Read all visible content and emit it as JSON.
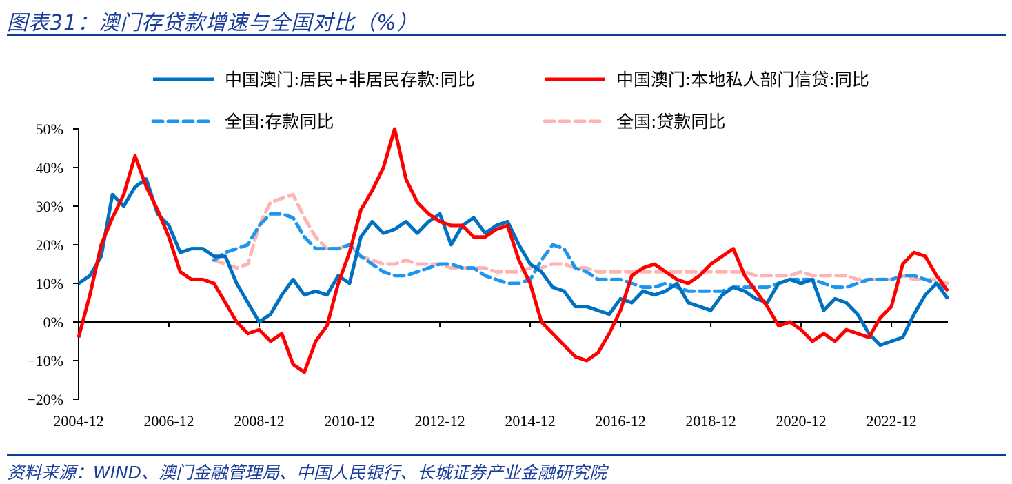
{
  "title": "图表31：澳门存贷款增速与全国对比（%）",
  "source": "资料来源：WIND、澳门金融管理局、中国人民银行、长城证券产业金融研究院",
  "chart_data": {
    "type": "line",
    "title": "",
    "xlabel": "",
    "ylabel": "",
    "ylim": [
      -20,
      50
    ],
    "yticks": [
      -20,
      -10,
      0,
      10,
      20,
      30,
      40,
      50
    ],
    "ytick_labels": [
      "−20%",
      "−10%",
      "0%",
      "10%",
      "20%",
      "30%",
      "40%",
      "50%"
    ],
    "xtick_labels": [
      "2004-12",
      "2006-12",
      "2008-12",
      "2010-12",
      "2012-12",
      "2014-12",
      "2016-12",
      "2018-12",
      "2020-12",
      "2022-12"
    ],
    "xlim": [
      "2004-12",
      "2024-03"
    ],
    "grid": false,
    "legend_placement": "top",
    "x": [
      "2004-12",
      "2005-03",
      "2005-06",
      "2005-09",
      "2005-12",
      "2006-03",
      "2006-06",
      "2006-09",
      "2006-12",
      "2007-03",
      "2007-06",
      "2007-09",
      "2007-12",
      "2008-03",
      "2008-06",
      "2008-09",
      "2008-12",
      "2009-03",
      "2009-06",
      "2009-09",
      "2009-12",
      "2010-03",
      "2010-06",
      "2010-09",
      "2010-12",
      "2011-03",
      "2011-06",
      "2011-09",
      "2011-12",
      "2012-03",
      "2012-06",
      "2012-09",
      "2012-12",
      "2013-03",
      "2013-06",
      "2013-09",
      "2013-12",
      "2014-03",
      "2014-06",
      "2014-09",
      "2014-12",
      "2015-03",
      "2015-06",
      "2015-09",
      "2015-12",
      "2016-03",
      "2016-06",
      "2016-09",
      "2016-12",
      "2017-03",
      "2017-06",
      "2017-09",
      "2017-12",
      "2018-03",
      "2018-06",
      "2018-09",
      "2018-12",
      "2019-03",
      "2019-06",
      "2019-09",
      "2019-12",
      "2020-03",
      "2020-06",
      "2020-09",
      "2020-12",
      "2021-03",
      "2021-06",
      "2021-09",
      "2021-12",
      "2022-03",
      "2022-06",
      "2022-09",
      "2022-12",
      "2023-03",
      "2023-06",
      "2023-09",
      "2023-12",
      "2024-03"
    ],
    "series": [
      {
        "name": "中国澳门:居民+非居民存款:同比",
        "color": "#0070C0",
        "style": "solid",
        "values": [
          10,
          12,
          17,
          33,
          30,
          35,
          37,
          28,
          25,
          18,
          19,
          19,
          17,
          17,
          10,
          5,
          0,
          2,
          7,
          11,
          7,
          8,
          7,
          12,
          10,
          22,
          26,
          23,
          24,
          26,
          23,
          26,
          28,
          20,
          25,
          27,
          23,
          25,
          26,
          20,
          15,
          13,
          9,
          8,
          4,
          4,
          3,
          2,
          6,
          5,
          8,
          7,
          8,
          10,
          5,
          4,
          3,
          7,
          9,
          8,
          6,
          5,
          10,
          11,
          10,
          11,
          3,
          6,
          5,
          2,
          -3,
          -6,
          -5,
          -4,
          2,
          7,
          10,
          6
        ]
      },
      {
        "name": "中国澳门:本地私人部门信贷:同比",
        "color": "#FF0000",
        "style": "solid",
        "values": [
          -4,
          7,
          20,
          27,
          33,
          43,
          35,
          29,
          22,
          13,
          11,
          11,
          10,
          5,
          0,
          -3,
          -2,
          -5,
          -3,
          -11,
          -13,
          -5,
          -1,
          10,
          18,
          29,
          34,
          40,
          50,
          37,
          31,
          28,
          26,
          25,
          25,
          22,
          22,
          24,
          25,
          16,
          10,
          0,
          -3,
          -6,
          -9,
          -10,
          -8,
          -3,
          3,
          12,
          14,
          15,
          13,
          11,
          10,
          12,
          15,
          17,
          19,
          12,
          8,
          4,
          -1,
          0,
          -2,
          -5,
          -3,
          -5,
          -2,
          -3,
          -4,
          1,
          4,
          15,
          18,
          17,
          12,
          8
        ]
      },
      {
        "name": "全国:存款同比",
        "color": "#1E96F0",
        "style": "dashed",
        "values": [
          null,
          null,
          null,
          null,
          null,
          null,
          null,
          null,
          null,
          null,
          null,
          null,
          16,
          18,
          19,
          20,
          25,
          28,
          28,
          27,
          22,
          19,
          19,
          19,
          20,
          17,
          15,
          13,
          12,
          12,
          13,
          14,
          15,
          15,
          14,
          14,
          12,
          11,
          10,
          10,
          11,
          16,
          20,
          19,
          14,
          13,
          11,
          11,
          11,
          10,
          9,
          9,
          10,
          9,
          8,
          8,
          8,
          8,
          9,
          9,
          9,
          9,
          10,
          11,
          11,
          11,
          10,
          9,
          9,
          10,
          11,
          11,
          11,
          12,
          12,
          11,
          10,
          8
        ]
      },
      {
        "name": "全国:贷款同比",
        "color": "#FFB4B4",
        "style": "dashed",
        "values": [
          null,
          null,
          null,
          null,
          null,
          null,
          null,
          null,
          null,
          null,
          null,
          null,
          16,
          15,
          14,
          15,
          25,
          31,
          32,
          33,
          27,
          22,
          19,
          19,
          20,
          17,
          16,
          15,
          15,
          16,
          15,
          15,
          15,
          14,
          14,
          14,
          14,
          13,
          13,
          13,
          14,
          14,
          15,
          15,
          14,
          14,
          13,
          13,
          13,
          13,
          13,
          13,
          13,
          13,
          13,
          13,
          13,
          13,
          13,
          13,
          12,
          12,
          12,
          12,
          13,
          12,
          12,
          12,
          12,
          11,
          11,
          11,
          11,
          12,
          11,
          11,
          11,
          10
        ]
      }
    ]
  }
}
